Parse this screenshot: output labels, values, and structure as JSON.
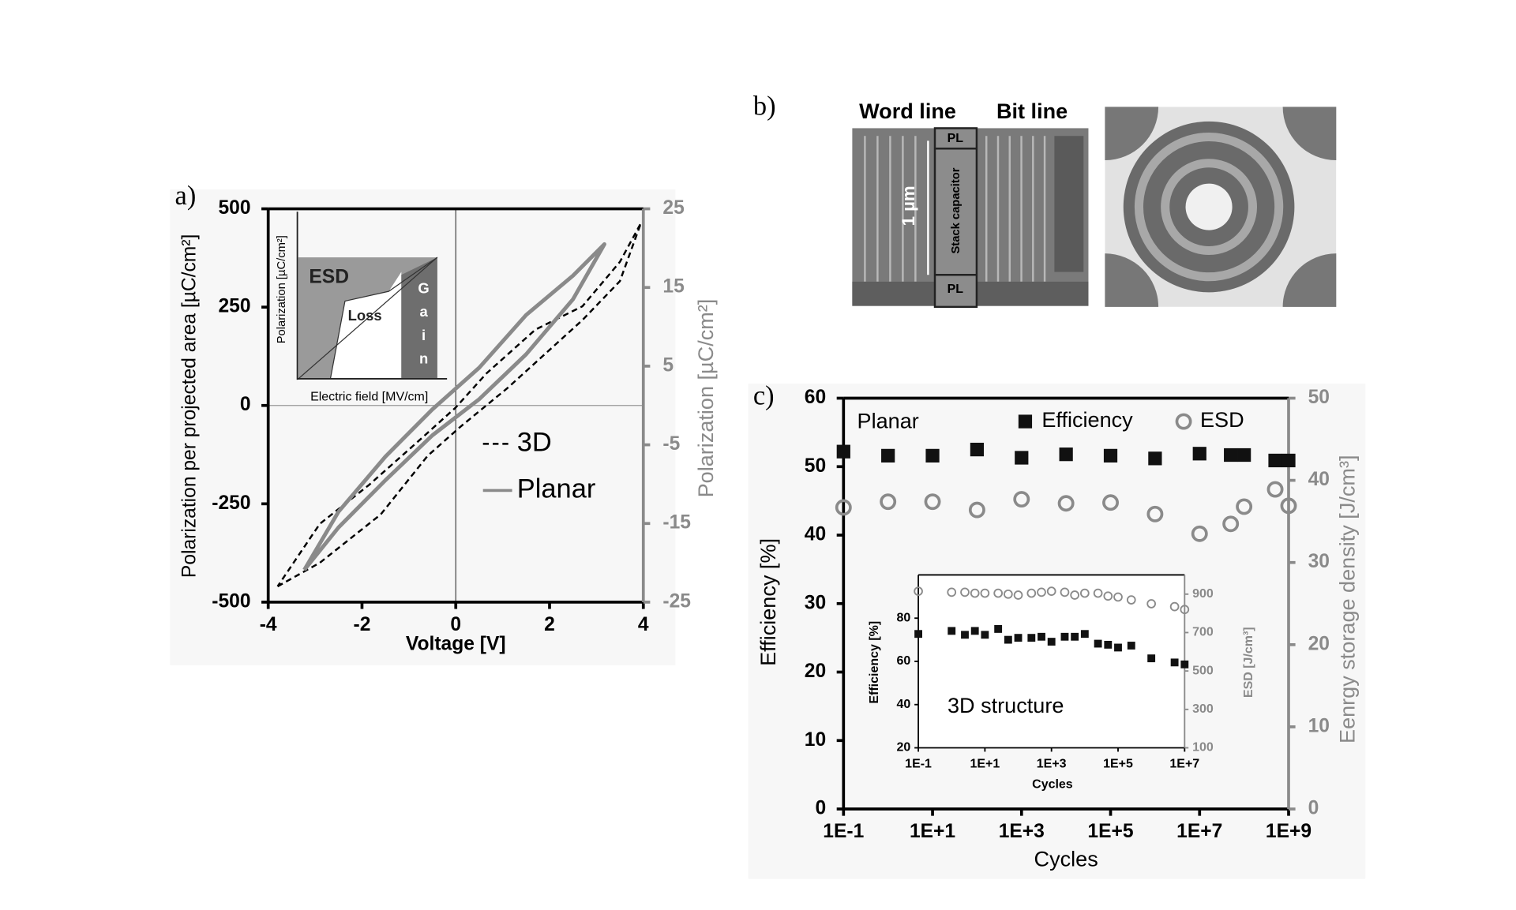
{
  "panel_labels": [
    "a)",
    "b)",
    "c)"
  ],
  "inset_a": {
    "esd": "ESD",
    "loss": "Loss",
    "gain": "Gain",
    "ylabel": "Polarization [µC/cm²]",
    "xlabel": "Electric field [MV/cm]"
  },
  "image_b": {
    "word_line": "Word line",
    "bit_line": "Bit line",
    "pl_top": "PL",
    "pl_bottom": "PL",
    "scale": "1 µm",
    "capacitor": "Stack capacitor"
  },
  "chart_data": [
    {
      "type": "line",
      "xlabel": "Voltage [V]",
      "ylabel": "Polarization per projected area [µC/cm²]",
      "y2label": "Polarization [µC/cm²]",
      "xlim": [
        -4,
        4
      ],
      "xticks": [
        -4,
        -2,
        0,
        2,
        4
      ],
      "ylim": [
        -500,
        500
      ],
      "yticks": [
        -500,
        -250,
        0,
        250,
        500
      ],
      "y2lim": [
        -25,
        25
      ],
      "y2ticks": [
        -25,
        -15,
        -5,
        5,
        15,
        25
      ],
      "series": [
        {
          "name": "3D",
          "color": "#000000",
          "linestyle": "dashed",
          "x": [
            -3.8,
            -2.9,
            -1.6,
            -0.6,
            0.1,
            1.1,
            2.7,
            3.5,
            3.95,
            3.5,
            2.7,
            1.7,
            0.65,
            0,
            -0.8,
            -1.85,
            -2.9,
            -3.8
          ],
          "values": [
            -460,
            -400,
            -277,
            -128,
            -54,
            44,
            217,
            316,
            464,
            365,
            252,
            193,
            81,
            -5,
            -91,
            -202,
            -301,
            -460
          ]
        },
        {
          "name": "Planar",
          "color": "#8a8a8a",
          "linestyle": "solid",
          "axis": "y2",
          "x": [
            -3.23,
            -2.5,
            -1.5,
            -0.5,
            0.5,
            1.5,
            2.5,
            3.17,
            2.5,
            1.5,
            0.5,
            -0.5,
            -1.5,
            -2.5,
            -3.23
          ],
          "values": [
            -20.9,
            -15.5,
            -9.5,
            -3.8,
            0.8,
            6.5,
            13.5,
            20.5,
            16.5,
            11.5,
            4.8,
            -0.5,
            -6.5,
            -13.5,
            -20.9
          ]
        }
      ]
    },
    {
      "type": "scatter",
      "annotation": "Planar",
      "xscale": "log",
      "xlabel": "Cycles",
      "ylabel": "Efficiency [%]",
      "y2label": "Eenrgy storage density [J/cm³]",
      "xlim": [
        0.1,
        1000000000
      ],
      "xticks": [
        {
          "value": 0.1,
          "label": "1E-1"
        },
        {
          "value": 10,
          "label": "1E+1"
        },
        {
          "value": 1000,
          "label": "1E+3"
        },
        {
          "value": 100000,
          "label": "1E+5"
        },
        {
          "value": 10000000,
          "label": "1E+7"
        },
        {
          "value": 1000000000,
          "label": "1E+9"
        }
      ],
      "ylim": [
        0,
        60
      ],
      "yticks": [
        0,
        10,
        20,
        30,
        40,
        50,
        60
      ],
      "y2lim": [
        0,
        50
      ],
      "y2ticks": [
        0,
        10,
        20,
        30,
        40,
        50
      ],
      "x": [
        0.1,
        1,
        10,
        100,
        1000,
        10000,
        100000,
        1000000,
        10000000,
        50000000,
        100000000,
        500000000,
        1000000000
      ],
      "series": [
        {
          "name": "Efficiency",
          "color": "#111111",
          "marker": "square",
          "values": [
            52.2,
            51.6,
            51.6,
            52.5,
            51.3,
            51.8,
            51.6,
            51.2,
            51.9,
            51.7,
            51.7,
            50.9,
            50.9
          ]
        },
        {
          "name": "ESD",
          "color": "#8a8a8a",
          "marker": "circle",
          "axis": "y2",
          "values": [
            36.7,
            37.4,
            37.4,
            36.4,
            37.7,
            37.2,
            37.3,
            35.9,
            33.5,
            34.7,
            36.8,
            38.9,
            36.9
          ]
        }
      ]
    },
    {
      "type": "scatter",
      "annotation": "3D structure",
      "xscale": "log",
      "xlabel": "Cycles",
      "ylabel": "Efficiency [%]",
      "y2label": "ESD [J/cm³]",
      "xlim": [
        0.1,
        10000000
      ],
      "xticks": [
        {
          "value": 0.1,
          "label": "1E-1"
        },
        {
          "value": 10,
          "label": "1E+1"
        },
        {
          "value": 1000,
          "label": "1E+3"
        },
        {
          "value": 100000,
          "label": "1E+5"
        },
        {
          "value": 10000000,
          "label": "1E+7"
        }
      ],
      "ylim": [
        20,
        100
      ],
      "yticks": [
        20,
        40,
        60,
        80
      ],
      "y2lim": [
        100,
        1000
      ],
      "y2ticks": [
        100,
        300,
        500,
        700,
        900
      ],
      "x": [
        0.1,
        1,
        2.5,
        5,
        10,
        25,
        50,
        100,
        250,
        500,
        1000,
        2500,
        5000,
        10000,
        25000,
        50000,
        100000,
        250000,
        1000000,
        5000000,
        10000000
      ],
      "series": [
        {
          "color": "#111111",
          "marker": "square",
          "values": [
            72.7,
            74.1,
            72.3,
            74.1,
            72.3,
            75,
            70,
            70.9,
            70.9,
            71.4,
            69.1,
            71.4,
            71.4,
            72.7,
            68.2,
            67.7,
            66.4,
            67.3,
            61.4,
            59.5,
            58.6
          ]
        },
        {
          "color": "#8a8a8a",
          "marker": "circle",
          "axis": "y2",
          "values": [
            915,
            910,
            910,
            905,
            905,
            905,
            900,
            895,
            905,
            910,
            915,
            910,
            895,
            905,
            905,
            890,
            885,
            870,
            850,
            835,
            820
          ]
        }
      ]
    }
  ]
}
